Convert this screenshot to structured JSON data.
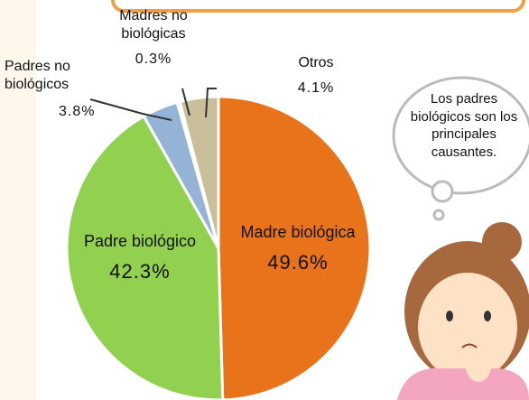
{
  "chart_data": {
    "type": "pie",
    "categories": [
      "Madre biológica",
      "Padre biológico",
      "Padres no biológicos",
      "Madres no biológicas",
      "Otros"
    ],
    "values": [
      49.6,
      42.3,
      3.8,
      0.3,
      4.1
    ],
    "value_labels": [
      "49.6%",
      "42.3%",
      "3.8%",
      "0.3%",
      "4.1%"
    ],
    "colors": [
      "#e8731a",
      "#92d050",
      "#95b3d7",
      "#d9d9d9",
      "#c9bf9b"
    ]
  },
  "annotation": "Los padres biológicos son los principales causantes."
}
